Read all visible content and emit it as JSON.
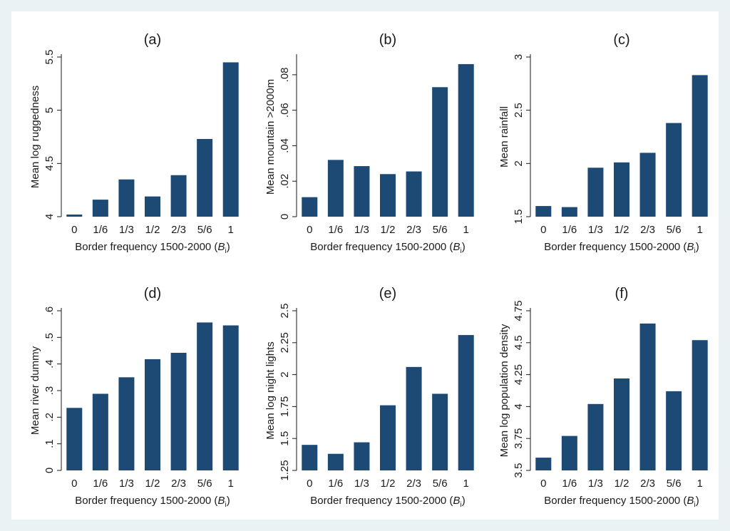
{
  "colors": {
    "bar": "#1d4a75",
    "background": "#eaf2f3",
    "plot": "#ffffff"
  },
  "chart_data": [
    {
      "type": "bar",
      "title": "(a)",
      "xlabel": "Border frequency 1500-2000 (",
      "xlabel_var": "B",
      "xlabel_sub": "i",
      "xlabel_close": ")",
      "ylabel": "Mean log ruggedness",
      "categories": [
        "0",
        "1/6",
        "1/3",
        "1/2",
        "2/3",
        "5/6",
        "1"
      ],
      "values": [
        4.02,
        4.16,
        4.35,
        4.19,
        4.39,
        4.73,
        5.45
      ],
      "ylim": [
        4,
        5.5
      ],
      "yticks": [
        4,
        4.5,
        5,
        5.5
      ],
      "ytick_labels": [
        "4",
        "4.5",
        "5",
        "5.5"
      ]
    },
    {
      "type": "bar",
      "title": "(b)",
      "xlabel": "Border frequency 1500-2000 (",
      "xlabel_var": "B",
      "xlabel_sub": "i",
      "xlabel_close": ")",
      "ylabel": "Mean mountain >2000m",
      "categories": [
        "0",
        "1/6",
        "1/3",
        "1/2",
        "2/3",
        "5/6",
        "1"
      ],
      "values": [
        0.011,
        0.032,
        0.0285,
        0.024,
        0.0255,
        0.073,
        0.086
      ],
      "ylim": [
        0,
        0.09
      ],
      "yticks": [
        0,
        0.02,
        0.04,
        0.06,
        0.08
      ],
      "ytick_labels": [
        "0",
        ".02",
        ".04",
        ".06",
        ".08"
      ]
    },
    {
      "type": "bar",
      "title": "(c)",
      "xlabel": "Border frequency 1500-2000 (",
      "xlabel_var": "B",
      "xlabel_sub": "i",
      "xlabel_close": ")",
      "ylabel": "Mean rainfall",
      "categories": [
        "0",
        "1/6",
        "1/3",
        "1/2",
        "2/3",
        "5/6",
        "1"
      ],
      "values": [
        1.6,
        1.59,
        1.96,
        2.01,
        2.1,
        2.38,
        2.83
      ],
      "ylim": [
        1.5,
        3
      ],
      "yticks": [
        1.5,
        2,
        2.5,
        3
      ],
      "ytick_labels": [
        "1.5",
        "2",
        "2.5",
        "3"
      ]
    },
    {
      "type": "bar",
      "title": "(d)",
      "xlabel": "Border frequency 1500-2000 (",
      "xlabel_var": "B",
      "xlabel_sub": "i",
      "xlabel_close": ")",
      "ylabel": "Mean river dummy",
      "categories": [
        "0",
        "1/6",
        "1/3",
        "1/2",
        "2/3",
        "5/6",
        "1"
      ],
      "values": [
        0.235,
        0.288,
        0.35,
        0.418,
        0.442,
        0.556,
        0.545
      ],
      "ylim": [
        0,
        0.6
      ],
      "yticks": [
        0,
        0.1,
        0.2,
        0.3,
        0.4,
        0.5,
        0.6
      ],
      "ytick_labels": [
        "0",
        ".1",
        ".2",
        ".3",
        ".4",
        ".5",
        ".6"
      ]
    },
    {
      "type": "bar",
      "title": "(e)",
      "xlabel": "Border frequency 1500-2000 (",
      "xlabel_var": "B",
      "xlabel_sub": "i",
      "xlabel_close": ")",
      "ylabel": "Mean log night lights",
      "categories": [
        "0",
        "1/6",
        "1/3",
        "1/2",
        "2/3",
        "5/6",
        "1"
      ],
      "values": [
        1.45,
        1.38,
        1.47,
        1.76,
        2.06,
        1.85,
        2.31
      ],
      "ylim": [
        1.25,
        2.5
      ],
      "yticks": [
        1.25,
        1.5,
        1.75,
        2,
        2.25,
        2.5
      ],
      "ytick_labels": [
        "1.25",
        "1.5",
        "1.75",
        "2",
        "2.25",
        "2.5"
      ]
    },
    {
      "type": "bar",
      "title": "(f)",
      "xlabel": "Border frequency 1500-2000 (",
      "xlabel_var": "B",
      "xlabel_sub": "i",
      "xlabel_close": ")",
      "ylabel": "Mean log population density",
      "categories": [
        "0",
        "1/6",
        "1/3",
        "1/2",
        "2/3",
        "5/6",
        "1"
      ],
      "values": [
        3.6,
        3.77,
        4.02,
        4.22,
        4.65,
        4.12,
        4.52
      ],
      "ylim": [
        3.5,
        4.75
      ],
      "yticks": [
        3.5,
        3.75,
        4,
        4.25,
        4.5,
        4.75
      ],
      "ytick_labels": [
        "3.5",
        "3.75",
        "4",
        "4.25",
        "4.5",
        "4.75"
      ]
    }
  ]
}
